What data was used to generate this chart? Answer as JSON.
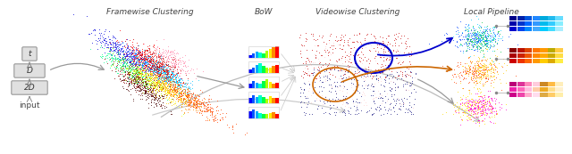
{
  "bg_color": "#ffffff",
  "label_framewise": "Framewise Clustering",
  "label_bow": "BoW",
  "label_videowise": "Videowise Clustering",
  "label_local": "Local Pipeline",
  "label_input": "input",
  "label_t": "t",
  "label_D": "D",
  "label_2D": "2D",
  "label_fontsize": 6.5,
  "scatter_colors": [
    "#ff0000",
    "#cc0000",
    "#aa2200",
    "#882200",
    "#661100",
    "#ff4400",
    "#ff8800",
    "#ffaa00",
    "#ffcc00",
    "#ffee00",
    "#aaff00",
    "#44ff00",
    "#00cc44",
    "#00ffaa",
    "#00aaff",
    "#0044ff",
    "#0000cc",
    "#4400cc",
    "#8800cc",
    "#0088ff"
  ]
}
